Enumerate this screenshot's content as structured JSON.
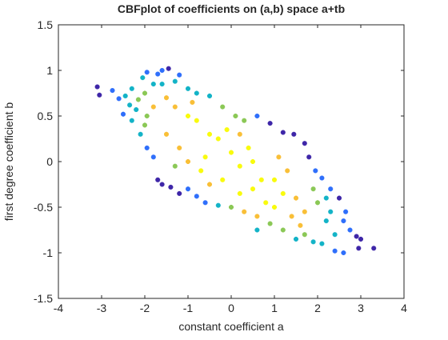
{
  "chart_data": {
    "type": "scatter",
    "title": "CBFplot of coefficients on (a,b) space a+tb",
    "xlabel": "constant coefficient a",
    "ylabel": "first degree coefficient b",
    "xlim": [
      -4,
      4
    ],
    "ylim": [
      -1.5,
      1.5
    ],
    "x_ticks": [
      -4,
      -3,
      -2,
      -1,
      0,
      1,
      2,
      3,
      4
    ],
    "y_ticks": [
      -1.5,
      -1,
      -0.5,
      0,
      0.5,
      1,
      1.5
    ],
    "x_tick_labels": [
      "-4",
      "-3",
      "-2",
      "-1",
      "0",
      "1",
      "2",
      "3",
      "4"
    ],
    "y_tick_labels": [
      "-1.5",
      "-1",
      "-0.5",
      "0",
      "0.5",
      "1",
      "1.5"
    ],
    "grid": false,
    "box": true,
    "marker": "asterisk",
    "colormap": "parula",
    "colormap_colors": [
      "#3e26a8",
      "#2f6ffb",
      "#13b3c7",
      "#8bc856",
      "#f9bf37",
      "#f9fb0e"
    ],
    "points": [
      [
        -3.1,
        0.82
      ],
      [
        -3.05,
        0.73
      ],
      [
        -2.75,
        0.78
      ],
      [
        -2.6,
        0.69
      ],
      [
        -2.45,
        0.72
      ],
      [
        -2.3,
        0.8
      ],
      [
        -2.15,
        0.68
      ],
      [
        -2.05,
        0.92
      ],
      [
        -1.95,
        0.98
      ],
      [
        -1.8,
        0.85
      ],
      [
        -1.7,
        0.96
      ],
      [
        -1.6,
        1.0
      ],
      [
        -1.45,
        1.02
      ],
      [
        -1.3,
        0.88
      ],
      [
        -1.2,
        0.95
      ],
      [
        -2.35,
        0.62
      ],
      [
        -2.1,
        0.3
      ],
      [
        -1.95,
        0.5
      ],
      [
        -1.95,
        0.15
      ],
      [
        -1.8,
        0.05
      ],
      [
        -1.7,
        -0.2
      ],
      [
        -1.6,
        -0.25
      ],
      [
        -1.4,
        -0.28
      ],
      [
        -1.2,
        -0.35
      ],
      [
        -1.0,
        -0.3
      ],
      [
        -0.8,
        -0.38
      ],
      [
        -0.6,
        -0.45
      ],
      [
        -2.3,
        0.45
      ],
      [
        -2.2,
        0.57
      ],
      [
        -1.5,
        0.7
      ],
      [
        -1.0,
        0.8
      ],
      [
        -0.8,
        0.75
      ],
      [
        -0.5,
        0.72
      ],
      [
        -0.2,
        0.6
      ],
      [
        0.1,
        0.5
      ],
      [
        0.3,
        0.45
      ],
      [
        0.6,
        0.5
      ],
      [
        0.9,
        0.42
      ],
      [
        1.2,
        0.32
      ],
      [
        1.45,
        0.3
      ],
      [
        1.7,
        0.2
      ],
      [
        1.8,
        0.05
      ],
      [
        1.95,
        -0.1
      ],
      [
        2.1,
        -0.18
      ],
      [
        2.3,
        -0.3
      ],
      [
        2.5,
        -0.4
      ],
      [
        2.65,
        -0.55
      ],
      [
        2.6,
        -0.65
      ],
      [
        2.75,
        -0.75
      ],
      [
        2.9,
        -0.82
      ],
      [
        3.0,
        -0.85
      ],
      [
        3.3,
        -0.95
      ],
      [
        2.95,
        -0.95
      ],
      [
        2.6,
        -1.0
      ],
      [
        2.4,
        -0.98
      ],
      [
        2.1,
        -0.9
      ],
      [
        1.9,
        -0.88
      ],
      [
        1.7,
        -0.8
      ],
      [
        1.5,
        -0.85
      ],
      [
        1.2,
        -0.75
      ],
      [
        0.9,
        -0.68
      ],
      [
        0.6,
        -0.6
      ],
      [
        0.3,
        -0.55
      ],
      [
        0.0,
        -0.5
      ],
      [
        -0.3,
        -0.48
      ],
      [
        -0.5,
        -0.25
      ],
      [
        -1.0,
        0.0
      ],
      [
        -1.5,
        0.3
      ],
      [
        0.5,
        0.0
      ],
      [
        1.0,
        -0.2
      ],
      [
        1.5,
        -0.4
      ],
      [
        -0.5,
        0.3
      ],
      [
        0.0,
        0.1
      ],
      [
        0.5,
        -0.3
      ],
      [
        1.0,
        -0.5
      ],
      [
        -1.8,
        0.6
      ],
      [
        -1.3,
        0.6
      ],
      [
        -0.8,
        0.45
      ],
      [
        -0.3,
        0.25
      ],
      [
        0.2,
        -0.05
      ],
      [
        0.7,
        -0.2
      ],
      [
        1.2,
        -0.35
      ],
      [
        1.7,
        -0.55
      ],
      [
        2.2,
        -0.65
      ],
      [
        2.4,
        -0.8
      ],
      [
        -2.5,
        0.52
      ],
      [
        -2.0,
        0.4
      ],
      [
        -1.2,
        0.15
      ],
      [
        -0.6,
        0.05
      ],
      [
        0.8,
        -0.45
      ],
      [
        1.6,
        -0.7
      ],
      [
        2.0,
        -0.45
      ],
      [
        2.3,
        -0.55
      ],
      [
        -1.0,
        0.5
      ],
      [
        0.2,
        0.3
      ],
      [
        -2.0,
        0.75
      ],
      [
        -1.6,
        0.85
      ],
      [
        -0.9,
        0.65
      ],
      [
        -0.1,
        0.35
      ],
      [
        0.4,
        0.15
      ],
      [
        1.1,
        0.05
      ],
      [
        1.3,
        -0.1
      ],
      [
        1.9,
        -0.3
      ],
      [
        2.2,
        -0.4
      ],
      [
        -0.2,
        -0.2
      ],
      [
        -0.7,
        -0.1
      ],
      [
        -1.3,
        -0.05
      ],
      [
        0.6,
        -0.75
      ],
      [
        0.2,
        -0.35
      ],
      [
        1.4,
        -0.6
      ]
    ]
  }
}
